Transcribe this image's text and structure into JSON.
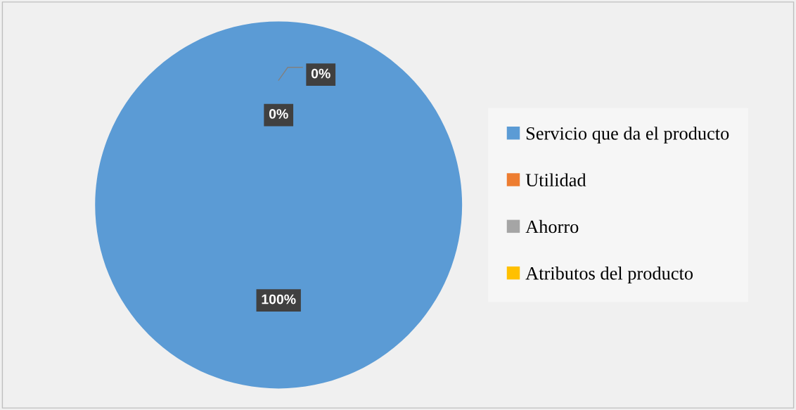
{
  "chart_data": {
    "type": "pie",
    "categories": [
      "Servicio que da el producto",
      "Utilidad",
      "Ahorro",
      "Atributos del producto"
    ],
    "values": [
      100,
      0,
      0,
      0
    ],
    "colors": [
      "#5b9bd5",
      "#ed7d31",
      "#a5a5a5",
      "#ffc000"
    ],
    "value_labels": [
      "100%",
      "0%",
      "0%",
      null
    ],
    "legend": "right"
  }
}
